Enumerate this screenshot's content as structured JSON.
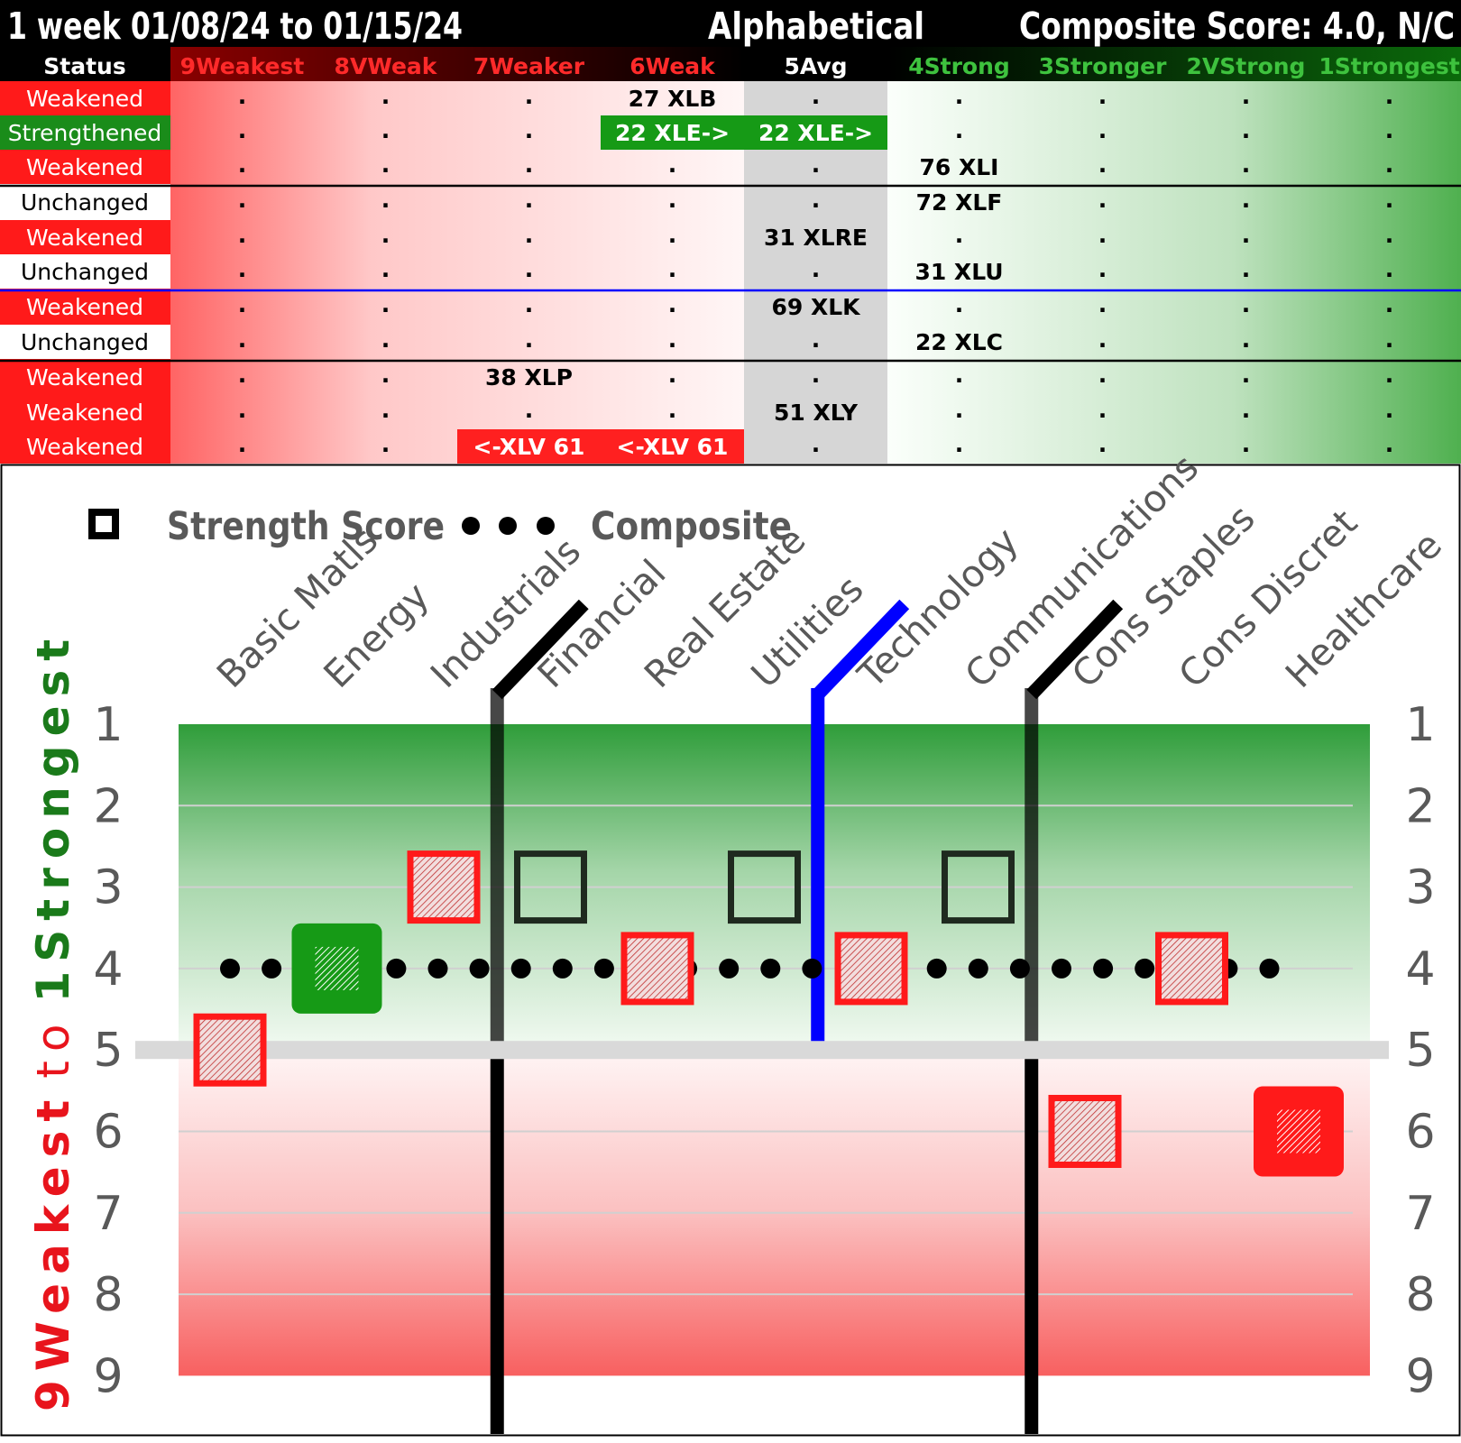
{
  "header": {
    "period": "1 week 01/08/24 to 01/15/24",
    "sort": "Alphabetical",
    "composite": "Composite Score: 4.0, N/C"
  },
  "table": {
    "status_header": "Status",
    "columns": [
      "9Weakest",
      "8VWeak",
      "7Weaker",
      "6Weak",
      "5Avg",
      "4Strong",
      "3Stronger",
      "2VStrong",
      "1Strongest"
    ],
    "column_colors": [
      "#ff2a2a",
      "#ff2a2a",
      "#ff2a2a",
      "#ff2a2a",
      "#ffffff",
      "#3ec23e",
      "#3ec23e",
      "#3ec23e",
      "#3ec23e"
    ],
    "empty_mark": ".",
    "rows": [
      {
        "status": "Weakened",
        "cells": [
          {
            "col": 5,
            "text": "27 XLB"
          }
        ]
      },
      {
        "status": "Strengthened",
        "cells": [
          {
            "col": 5,
            "text": "22 XLE->",
            "style": "green"
          },
          {
            "col": 4,
            "text": "22 XLE->",
            "style": "green"
          }
        ]
      },
      {
        "status": "Weakened",
        "cells": [
          {
            "col": 3,
            "text": "76 XLI"
          }
        ]
      },
      {
        "status": "Unchanged",
        "cells": [
          {
            "col": 3,
            "text": "72 XLF"
          }
        ]
      },
      {
        "status": "Weakened",
        "cells": [
          {
            "col": 4,
            "text": "31 XLRE"
          }
        ]
      },
      {
        "status": "Unchanged",
        "cells": [
          {
            "col": 3,
            "text": "31 XLU"
          }
        ]
      },
      {
        "status": "Weakened",
        "cells": [
          {
            "col": 4,
            "text": "69 XLK"
          }
        ]
      },
      {
        "status": "Unchanged",
        "cells": [
          {
            "col": 3,
            "text": "22 XLC"
          }
        ]
      },
      {
        "status": "Weakened",
        "cells": [
          {
            "col": 6,
            "text": "38 XLP"
          }
        ]
      },
      {
        "status": "Weakened",
        "cells": [
          {
            "col": 4,
            "text": "51 XLY"
          }
        ]
      },
      {
        "status": "Weakened",
        "cells": [
          {
            "col": 6,
            "text": "<-XLV 61",
            "style": "red"
          },
          {
            "col": 5,
            "text": "<-XLV 61",
            "style": "red"
          }
        ]
      }
    ]
  },
  "legend": {
    "strength": "Strength Score",
    "composite": "Composite"
  },
  "y_axis_title": {
    "part1": "9Weakest",
    "part2": "to",
    "part3": "1Strongest"
  },
  "colors": {
    "weakened": "#ff1a1a",
    "strengthened": "#1a8c1a",
    "unchanged": "#ffffff",
    "axis_green": "#1a7a1a",
    "axis_red": "#e8141c",
    "divider": "#000000",
    "tech_divider": "#0000ff"
  },
  "chart_data": {
    "type": "scatter",
    "categories": [
      "Basic Matls",
      "Energy",
      "Industrials",
      "Financial",
      "Real Estate",
      "Utilities",
      "Technology",
      "Communications",
      "Cons Staples",
      "Cons Discret",
      "Healthcare"
    ],
    "ylim": [
      1,
      9
    ],
    "y_inverted": true,
    "yticks": [
      1,
      2,
      3,
      4,
      5,
      6,
      7,
      8,
      9
    ],
    "series": [
      {
        "name": "Strength Score",
        "values": [
          5,
          4,
          3,
          3,
          4,
          3,
          4,
          3,
          6,
          4,
          6
        ],
        "status": [
          "Weakened",
          "Strengthened",
          "Weakened",
          "Unchanged",
          "Weakened",
          "Unchanged",
          "Weakened",
          "Unchanged",
          "Weakened",
          "Weakened",
          "Weakened"
        ],
        "big_marker": [
          false,
          true,
          false,
          false,
          false,
          false,
          false,
          false,
          false,
          false,
          true
        ]
      },
      {
        "name": "Composite",
        "value": 4.0
      }
    ],
    "dividers_after": [
      "Industrials",
      "Utilities",
      "Communications"
    ]
  }
}
